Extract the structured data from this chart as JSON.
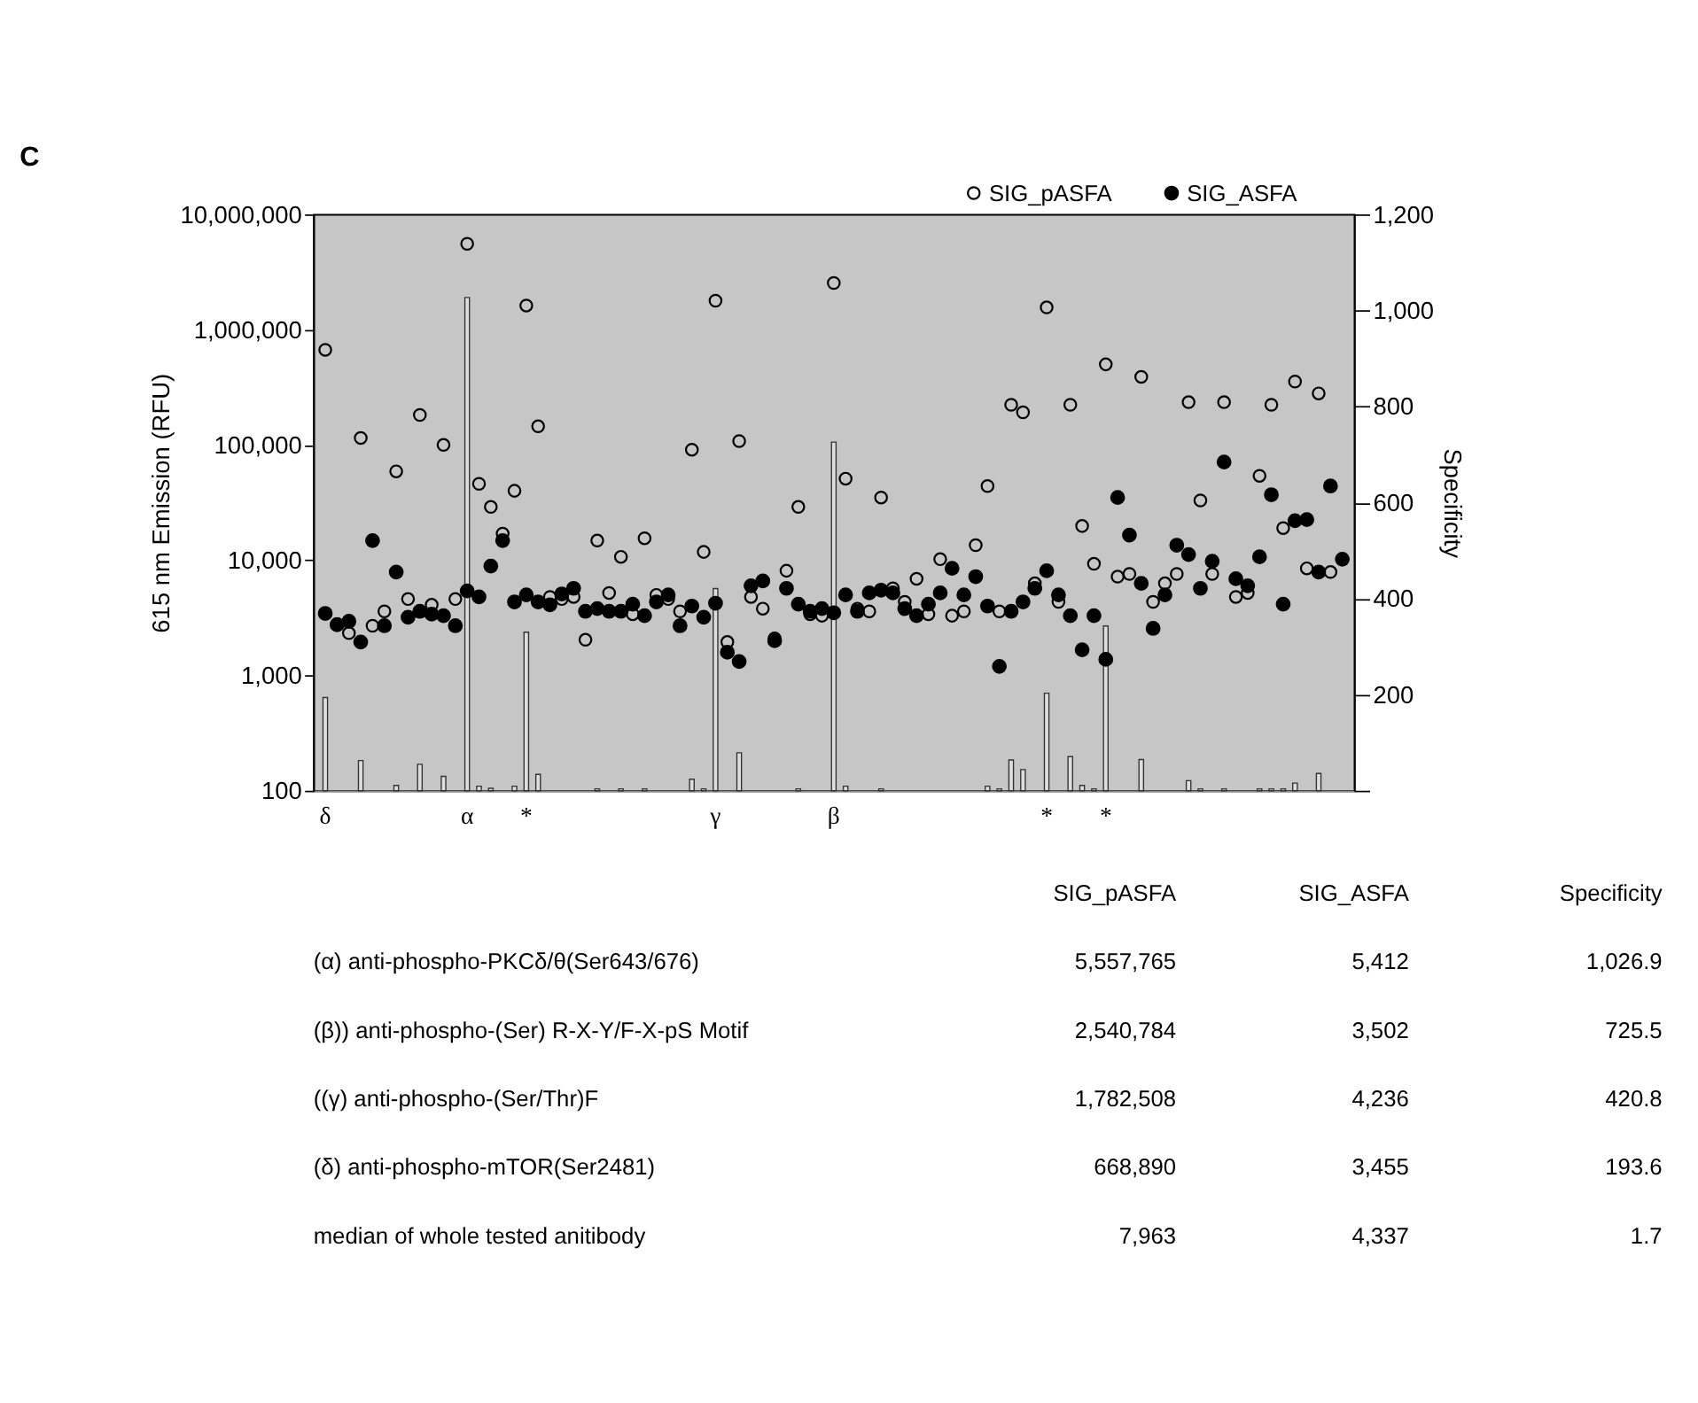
{
  "chart_data": [
    {
      "type": "scatter",
      "title": "C",
      "ylabel": "615 nm Emission (RFU)",
      "y2label": "Specificity",
      "categories": [
        "δ",
        null,
        null,
        null,
        null,
        null,
        null,
        null,
        null,
        null,
        null,
        null,
        "α",
        null,
        null,
        null,
        null,
        "*",
        null,
        null,
        null,
        null,
        null,
        null,
        null,
        null,
        null,
        null,
        null,
        null,
        null,
        null,
        null,
        "γ",
        null,
        null,
        null,
        null,
        null,
        null,
        null,
        null,
        null,
        "β",
        null,
        null,
        null,
        null,
        null,
        null,
        null,
        null,
        null,
        null,
        null,
        null,
        null,
        null,
        null,
        null,
        null,
        "*",
        null,
        null,
        null,
        null,
        "*",
        null,
        null,
        null,
        null,
        null,
        null,
        null,
        null,
        null,
        null,
        null,
        null,
        null,
        null,
        null,
        null,
        null,
        null,
        null,
        null
      ],
      "series": [
        {
          "name": "SIG_pASFA",
          "type": "scatter",
          "marker": "circle",
          "color": "#000000",
          "values": [
            668890,
            2800,
            2330,
            115000,
            2700,
            3600,
            59000,
            4600,
            182000,
            4100,
            100000,
            4600,
            5557765,
            46000,
            29000,
            17000,
            40000,
            1620000,
            145000,
            4800,
            4600,
            4800,
            2040,
            14800,
            5200,
            10700,
            3400,
            15500,
            5000,
            4600,
            3600,
            91000,
            11800,
            1782508,
            1950,
            108000,
            4800,
            3800,
            2100,
            8100,
            29000,
            3400,
            3300,
            2540784,
            51000,
            3800,
            3600,
            35000,
            5700,
            4350,
            6900,
            3400,
            10200,
            3300,
            3600,
            13500,
            44000,
            3600,
            223000,
            192000,
            6300,
            1560000,
            4350,
            223000,
            19800,
            9300,
            500000,
            7200,
            7600,
            390000,
            4350,
            6300,
            7600,
            235000,
            33000,
            7600,
            235000,
            4800,
            5200,
            54000,
            223000,
            19000,
            355000,
            8500,
            280000,
            7900,
            null
          ]
        },
        {
          "name": "SIG_ASFA",
          "type": "scatter",
          "marker": "circle",
          "color": "#000000",
          "values": [
            3455,
            2750,
            2950,
            1950,
            14800,
            2700,
            7900,
            3200,
            3600,
            3400,
            3300,
            2700,
            5412,
            4800,
            8900,
            14800,
            4350,
            5000,
            4350,
            4100,
            5100,
            5700,
            3600,
            3800,
            3600,
            3600,
            4150,
            3300,
            4350,
            5000,
            2700,
            4000,
            3200,
            4236,
            1590,
            1320,
            6000,
            6600,
            2000,
            5700,
            4150,
            3600,
            3800,
            3502,
            5000,
            3600,
            5200,
            5500,
            5200,
            3800,
            3300,
            4150,
            5200,
            8500,
            5000,
            7200,
            4000,
            1200,
            3600,
            4350,
            5700,
            8100,
            5000,
            3300,
            1670,
            3300,
            1380,
            35000,
            16500,
            6300,
            2560,
            5000,
            13500,
            11200,
            5700,
            9800,
            71000,
            6900,
            6000,
            10700,
            37000,
            4150,
            22000,
            22500,
            7900,
            44000,
            10200
          ]
        },
        {
          "type": "bar",
          "axis": "y2",
          "color": "#dedede",
          "values": [
            194,
            null,
            null,
            63,
            null,
            null,
            11,
            null,
            55,
            null,
            30,
            null,
            1027,
            9.5,
            5,
            null,
            9.5,
            330,
            34,
            null,
            null,
            null,
            null,
            4,
            null,
            4,
            null,
            4,
            null,
            null,
            null,
            24,
            4,
            421,
            null,
            79,
            null,
            null,
            null,
            null,
            4,
            null,
            null,
            726,
            9.5,
            null,
            null,
            4,
            null,
            null,
            null,
            null,
            null,
            null,
            null,
            null,
            9.5,
            4,
            64,
            44,
            null,
            203,
            null,
            71,
            11,
            4,
            343,
            null,
            null,
            65,
            null,
            null,
            null,
            21,
            4,
            null,
            4,
            null,
            null,
            4,
            4,
            4,
            16,
            null,
            36,
            null,
            null
          ]
        }
      ],
      "log": "y",
      "ylim": [
        100,
        10000000
      ],
      "yticks": [
        100,
        {
          "value": 1000,
          "label": "1,000"
        },
        {
          "value": 10000,
          "label": "10,000"
        },
        {
          "value": 100000,
          "label": "100,000"
        },
        {
          "value": 1000000,
          "label": "1,000,000"
        },
        {
          "value": 10000000,
          "label": "10,000,000"
        }
      ],
      "y2lim": [
        0,
        1200
      ],
      "y2ticks": [
        {
          "value": 0,
          "label": null
        },
        200,
        400,
        600,
        800,
        {
          "value": 1000,
          "label": "1,000"
        },
        {
          "value": 1200,
          "label": "1,200"
        }
      ],
      "grid": false,
      "legend": "top right"
    },
    {
      "type": "other",
      "categories": [
        "SIG_pASFA",
        "SIG_ASFA",
        "Specificity"
      ],
      "y_categories": [
        "(α) anti-phospho-PKCδ/θ(Ser643/676)",
        "(β)) anti-phospho-(Ser) R-X-Y/F-X-pS Motif",
        "((γ) anti-phospho-(Ser/Thr)F",
        "(δ) anti-phospho-mTOR(Ser2481)",
        "median of whole tested anitibody"
      ],
      "cell_labels": [
        [
          "5,557,765",
          "5,412",
          "1,026.9"
        ],
        [
          "2,540,784",
          "3,502",
          "725.5"
        ],
        [
          "1,782,508",
          "4,236",
          "420.8"
        ],
        [
          "668,890",
          "3,455",
          "193.6"
        ],
        [
          "7,963",
          "4,337",
          "1.7"
        ]
      ]
    }
  ]
}
